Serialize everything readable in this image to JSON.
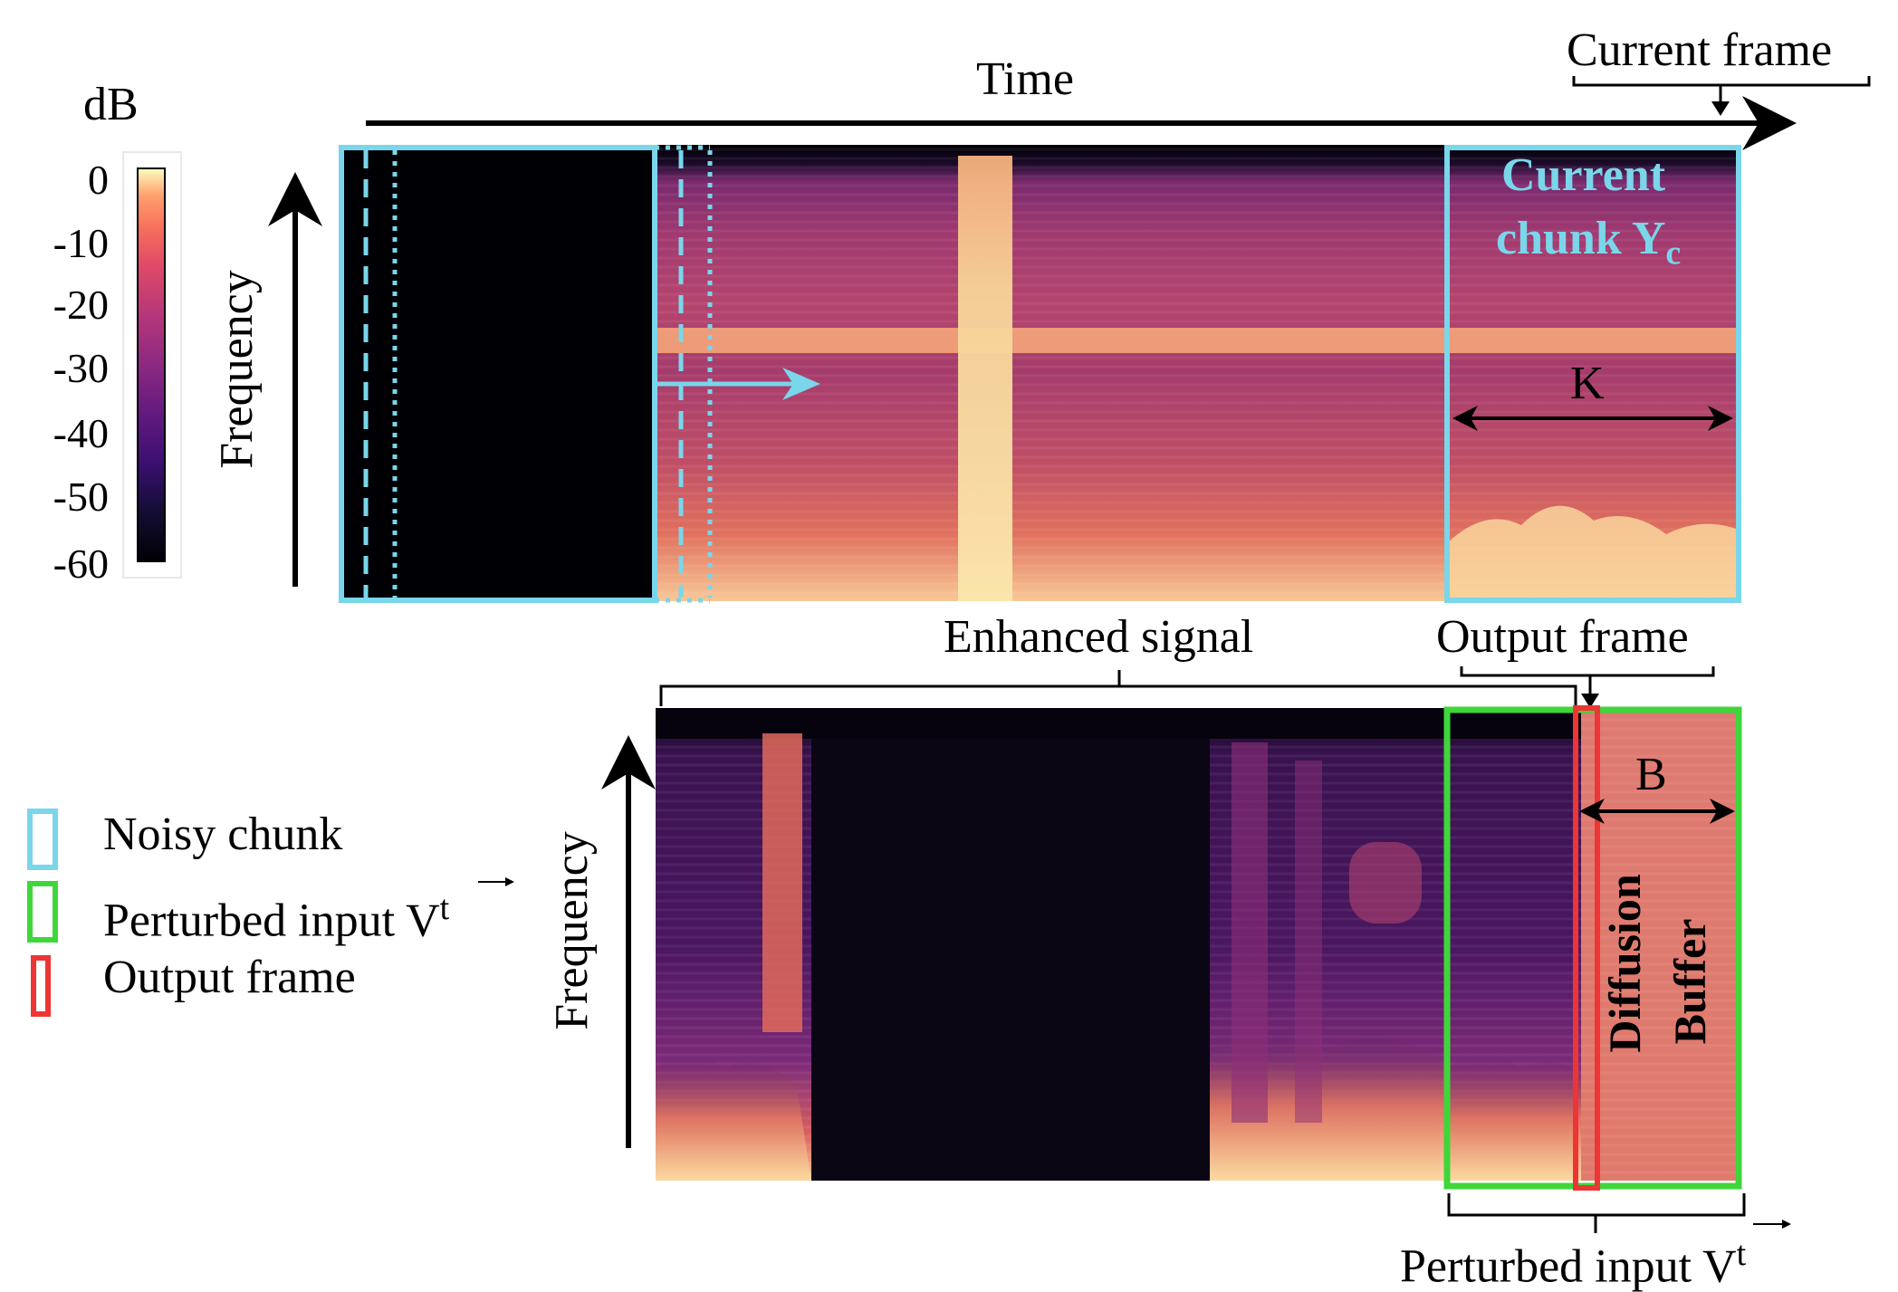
{
  "colorbar": {
    "unit": "dB",
    "ticks": [
      "0",
      "-10",
      "-20",
      "-30",
      "-40",
      "-50",
      "-60"
    ],
    "range": [
      -60,
      0
    ],
    "colormap": "magma"
  },
  "top_panel": {
    "time_label": "Time",
    "current_frame_label": "Current frame",
    "frequency_label": "Frequency",
    "current_chunk_line1": "Current",
    "current_chunk_line2": "chunk Y",
    "current_chunk_sub": "c",
    "k_label": "K"
  },
  "bottom_panel": {
    "enhanced_signal_label": "Enhanced signal",
    "output_frame_label": "Output frame",
    "frequency_label": "Frequency",
    "b_label": "B",
    "diffusion_label": "Diffusion",
    "buffer_label": "Buffer",
    "perturbed_input_label": "Perturbed input V",
    "perturbed_sup": "t"
  },
  "legend": {
    "items": [
      {
        "label": "Noisy chunk",
        "color": "#7ad6ea"
      },
      {
        "label": "Perturbed input V",
        "sup": "t",
        "color": "#3fd63a"
      },
      {
        "label": "Output frame",
        "color": "#ee3535"
      }
    ]
  },
  "colors": {
    "noisy": "#7ad6ea",
    "perturbed": "#3fd63a",
    "output": "#ee3535"
  }
}
